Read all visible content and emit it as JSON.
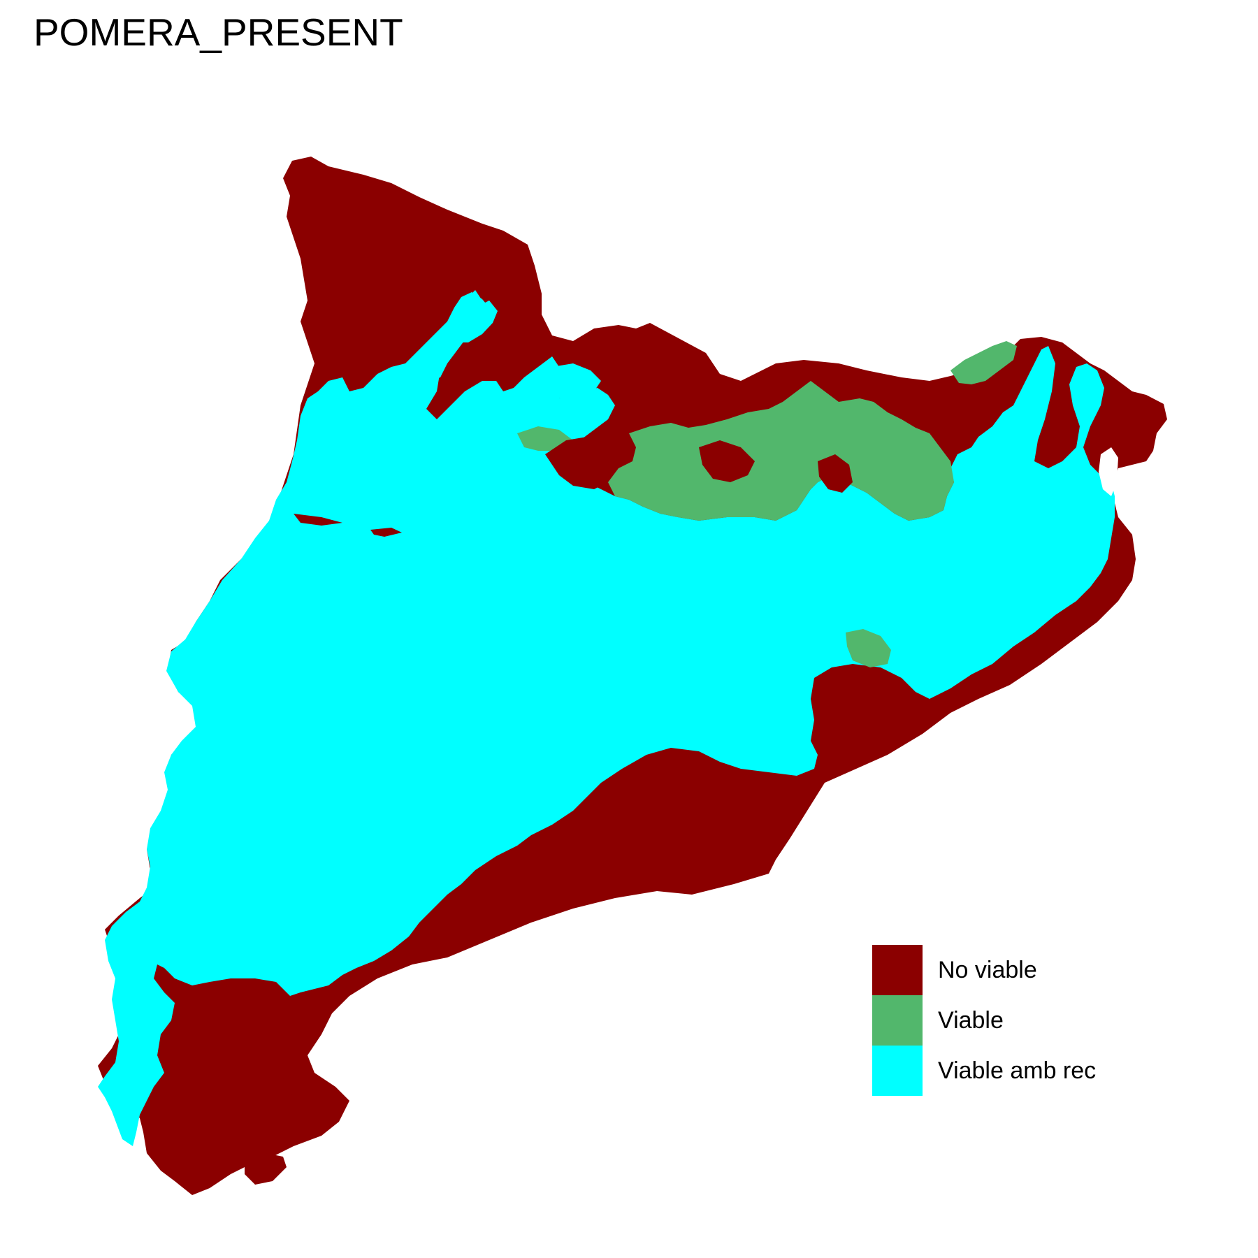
{
  "title": "POMERA_PRESENT",
  "colors": {
    "no_viable": "#8B0000",
    "viable": "#52B76C",
    "viable_amb_rec": "#00FFFF"
  },
  "legend": {
    "items": [
      {
        "key": "no_viable",
        "label": "No viable",
        "color": "#8B0000"
      },
      {
        "key": "viable",
        "label": "Viable",
        "color": "#52B76C"
      },
      {
        "key": "viable_amb_rec",
        "label": "Viable amb rec",
        "color": "#00FFFF"
      }
    ]
  }
}
